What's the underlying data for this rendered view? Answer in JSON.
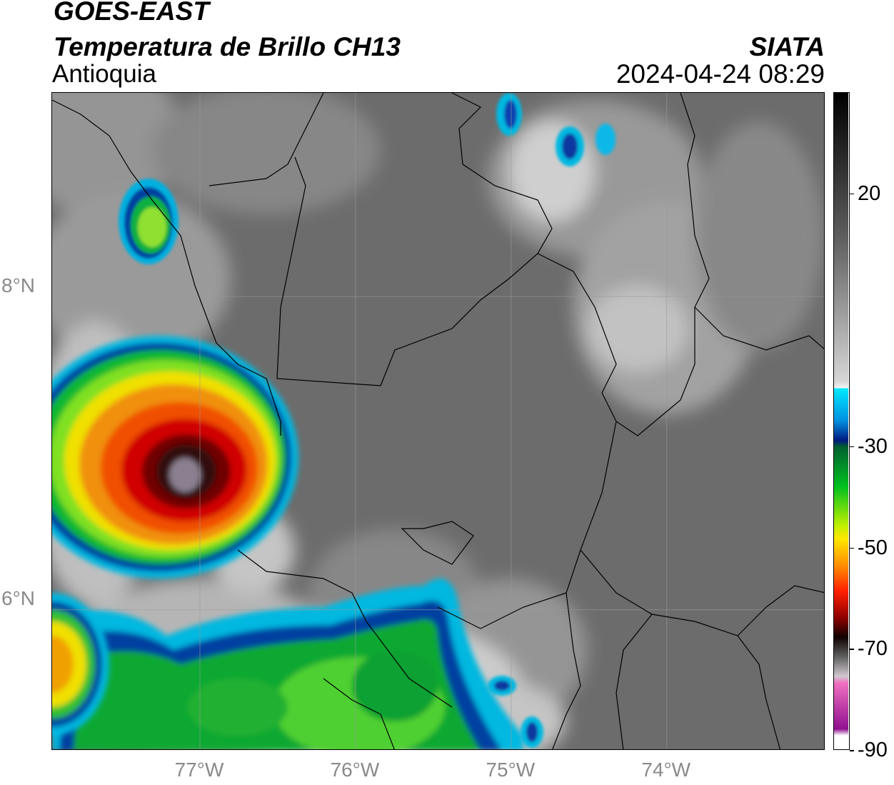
{
  "header": {
    "satellite": "GOES-EAST",
    "product": "Temperatura de Brillo CH13",
    "region": "Antioquia",
    "org": "SIATA",
    "timestamp": "2024-04-24 08:29"
  },
  "map": {
    "lat_range": [
      5.1,
      9.3
    ],
    "lon_range": [
      -77.95,
      -72.98
    ],
    "lat_ticks": [
      {
        "value": 8,
        "label": "8°N"
      },
      {
        "value": 6,
        "label": "6°N"
      }
    ],
    "lon_ticks": [
      {
        "value": -77,
        "label": "77°W"
      },
      {
        "value": -76,
        "label": "76°W"
      },
      {
        "value": -75,
        "label": "75°W"
      },
      {
        "value": -74,
        "label": "74°W"
      }
    ],
    "gridlines": true,
    "colors": {
      "background_gray": "#6e6e6e",
      "warm_white": "#e6e6e6",
      "cyan": "#00c0e0",
      "blue": "#0030a0",
      "green": "#10c030",
      "yellow": "#f0e000",
      "orange": "#f08000",
      "red": "#d00000",
      "dark_red": "#500000",
      "core_gray": "#7a7080"
    }
  },
  "colorbar": {
    "range": [
      -90,
      40
    ],
    "ticks": [
      {
        "value": 20,
        "label": "20"
      },
      {
        "value": -30,
        "label": "-30"
      },
      {
        "value": -50,
        "label": "-50"
      },
      {
        "value": -70,
        "label": "-70"
      },
      {
        "value": -90,
        "label": "-90"
      }
    ]
  }
}
